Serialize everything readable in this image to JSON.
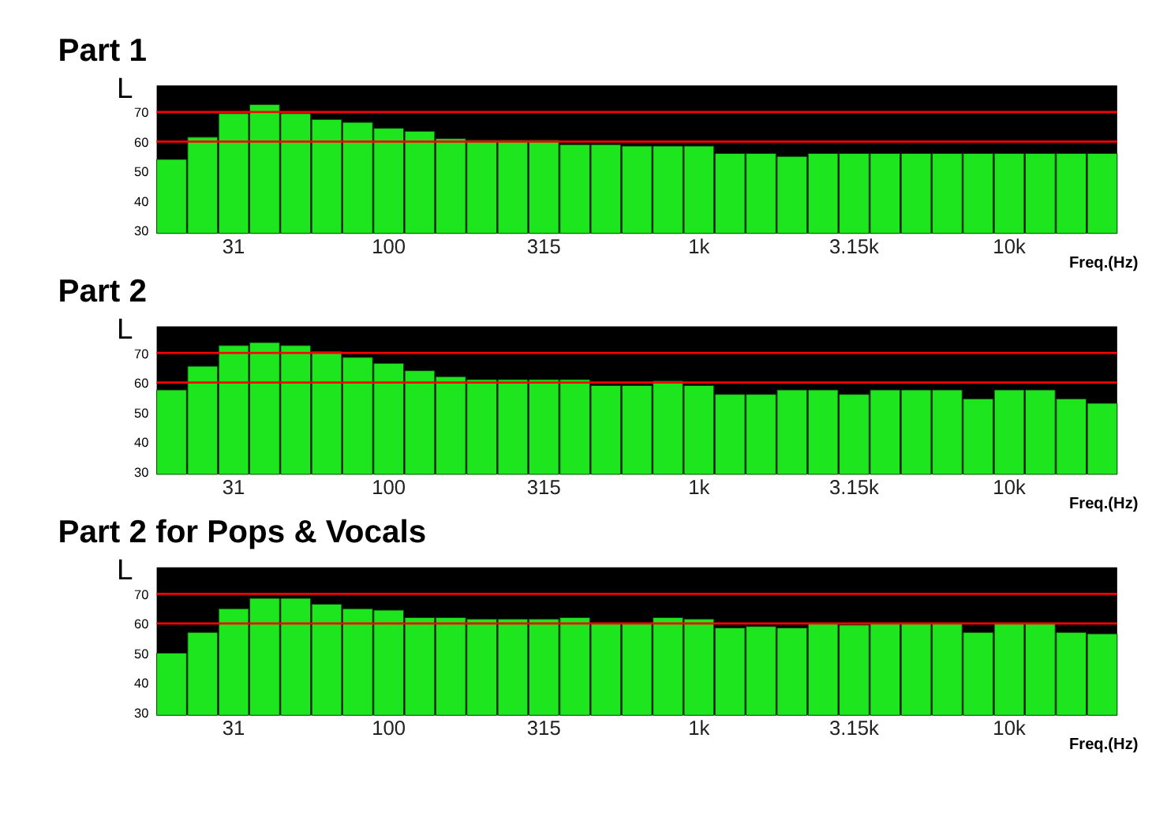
{
  "chart_data": [
    {
      "type": "bar",
      "title": "Part 1",
      "xlabel": "Freq.(Hz)",
      "ylabel": "L",
      "color": "#1ee61e",
      "categories": [
        null,
        null,
        "31",
        null,
        null,
        null,
        null,
        "100",
        null,
        null,
        null,
        null,
        "315",
        null,
        null,
        null,
        null,
        "1k",
        null,
        null,
        null,
        null,
        "3.15k",
        null,
        null,
        null,
        null,
        "10k",
        null,
        null,
        null
      ],
      "values": [
        54,
        61.5,
        69.5,
        72.5,
        69.5,
        67.5,
        66.5,
        64.5,
        63.5,
        61,
        60.5,
        60.5,
        60.5,
        59,
        59,
        58.5,
        58.5,
        58.5,
        56,
        56,
        55,
        56,
        56,
        56,
        56,
        56,
        56,
        56,
        56,
        56,
        56
      ],
      "ylim": [
        29,
        79
      ],
      "yticks": [
        30,
        40,
        50,
        60,
        70
      ],
      "ref_lines": [
        {
          "axis": "y",
          "value": 70,
          "color": "#ff0000"
        },
        {
          "axis": "y",
          "value": 60,
          "color": "#ff0000"
        }
      ]
    },
    {
      "type": "bar",
      "title": "Part 2",
      "xlabel": "Freq.(Hz)",
      "ylabel": "L",
      "color": "#1ee61e",
      "categories": [
        null,
        null,
        "31",
        null,
        null,
        null,
        null,
        "100",
        null,
        null,
        null,
        null,
        "315",
        null,
        null,
        null,
        null,
        "1k",
        null,
        null,
        null,
        null,
        "3.15k",
        null,
        null,
        null,
        null,
        "10k",
        null,
        null,
        null
      ],
      "values": [
        57.5,
        65.5,
        72.5,
        73.5,
        72.5,
        70.5,
        68.5,
        66.5,
        64,
        62,
        61,
        61,
        61,
        61,
        59,
        59,
        60.5,
        59,
        56,
        56,
        57.5,
        57.5,
        56,
        57.5,
        57.5,
        57.5,
        54.5,
        57.5,
        57.5,
        54.5,
        53
      ],
      "ylim": [
        29,
        79
      ],
      "yticks": [
        30,
        40,
        50,
        60,
        70
      ],
      "ref_lines": [
        {
          "axis": "y",
          "value": 70,
          "color": "#ff0000"
        },
        {
          "axis": "y",
          "value": 60,
          "color": "#ff0000"
        }
      ]
    },
    {
      "type": "bar",
      "title": "Part 2 for Pops & Vocals",
      "xlabel": "Freq.(Hz)",
      "ylabel": "L",
      "color": "#1ee61e",
      "categories": [
        null,
        null,
        "31",
        null,
        null,
        null,
        null,
        "100",
        null,
        null,
        null,
        null,
        "315",
        null,
        null,
        null,
        null,
        "1k",
        null,
        null,
        null,
        null,
        "3.15k",
        null,
        null,
        null,
        null,
        "10k",
        null,
        null,
        null
      ],
      "values": [
        50,
        57,
        65,
        68.5,
        68.5,
        66.5,
        65,
        64.5,
        62,
        62,
        61.5,
        61.5,
        61.5,
        62,
        60,
        60,
        62,
        61.5,
        58.5,
        59,
        58.5,
        60,
        59.5,
        60,
        60,
        60,
        57,
        60,
        60,
        57,
        56.5
      ],
      "ylim": [
        29,
        79
      ],
      "yticks": [
        30,
        40,
        50,
        60,
        70
      ],
      "ref_lines": [
        {
          "axis": "y",
          "value": 70,
          "color": "#ff0000"
        },
        {
          "axis": "y",
          "value": 60,
          "color": "#ff0000"
        }
      ]
    }
  ]
}
